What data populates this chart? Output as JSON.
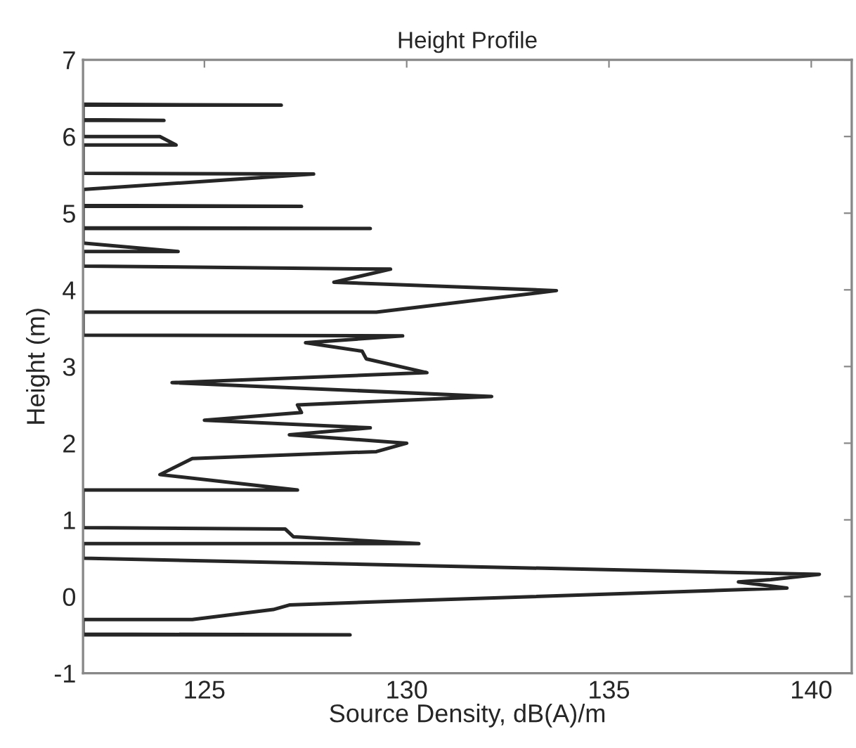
{
  "chart_data": {
    "type": "line",
    "title": "Height Profile",
    "xlabel": "Source Density, dB(A)/m",
    "ylabel": "Height (m)",
    "xlim": [
      122,
      141
    ],
    "xticks": [
      125,
      130,
      135,
      140
    ],
    "ylim": [
      -1,
      7
    ],
    "yticks": [
      -1,
      0,
      1,
      2,
      3,
      4,
      5,
      6,
      7
    ],
    "grid": false,
    "legend": false,
    "series": [
      {
        "color": "#262626",
        "x": [
          122,
          128.6,
          122,
          122,
          124.7,
          126.7,
          127.1,
          130.3,
          139.4,
          138.2,
          139.0,
          140.2,
          122,
          122,
          130.3,
          127.2,
          127.0,
          122,
          122,
          127.3,
          123.9,
          124.7,
          129.25,
          130.0,
          127.1,
          129.1,
          125.0,
          127.4,
          127.3,
          132.1,
          124.2,
          130.5,
          129.0,
          128.9,
          127.5,
          129.9,
          122,
          122,
          129.25,
          133.7,
          128.2,
          129.6,
          122,
          122,
          124.35,
          122,
          122,
          129.1,
          122,
          122,
          127.4,
          122,
          122,
          127.7,
          122,
          122,
          124.3,
          123.9,
          122,
          122,
          124.0,
          122,
          122,
          126.9,
          122
        ],
        "values": [
          -0.5,
          -0.5,
          -0.49,
          -0.3,
          -0.3,
          -0.17,
          -0.11,
          -0.05,
          0.11,
          0.19,
          0.22,
          0.29,
          0.5,
          0.69,
          0.69,
          0.78,
          0.88,
          0.9,
          1.39,
          1.39,
          1.59,
          1.8,
          1.89,
          2.0,
          2.11,
          2.2,
          2.3,
          2.4,
          2.5,
          2.61,
          2.79,
          2.92,
          3.1,
          3.2,
          3.31,
          3.4,
          3.41,
          3.71,
          3.71,
          3.99,
          4.1,
          4.27,
          4.31,
          4.5,
          4.5,
          4.61,
          4.8,
          4.8,
          4.81,
          5.09,
          5.09,
          5.1,
          5.31,
          5.51,
          5.52,
          5.89,
          5.89,
          6.0,
          6.0,
          6.21,
          6.21,
          6.22,
          6.41,
          6.41,
          6.42
        ]
      }
    ]
  }
}
